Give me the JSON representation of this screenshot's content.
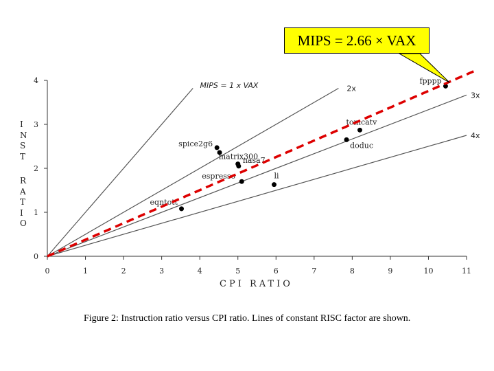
{
  "callout": {
    "text": "MIPS = 2.66 × VAX",
    "fill_color": "#ffff00"
  },
  "caption": "Figure 2: Instruction ratio versus CPI ratio. Lines of constant RISC factor are shown.",
  "chart_data": {
    "type": "scatter",
    "title": "",
    "xlabel": "CPI RATIO",
    "ylabel": "INST RATIO",
    "xlim": [
      0,
      11
    ],
    "ylim": [
      0,
      4
    ],
    "xticks": [
      "0",
      "1",
      "2",
      "3",
      "4",
      "5",
      "6",
      "7",
      "8",
      "9",
      "10",
      "11"
    ],
    "yticks": [
      "0",
      "1",
      "2",
      "3",
      "4"
    ],
    "grid": false,
    "points": [
      {
        "label": "fpppp",
        "x": 10.45,
        "y": 3.87
      },
      {
        "label": "tomcatv",
        "x": 8.2,
        "y": 2.87
      },
      {
        "label": "doduc",
        "x": 7.85,
        "y": 2.65
      },
      {
        "label": "spice2g6",
        "x": 4.45,
        "y": 2.47
      },
      {
        "label": "",
        "x": 4.52,
        "y": 2.36
      },
      {
        "label": "matrix300",
        "x": 5.0,
        "y": 2.1
      },
      {
        "label": "nasa7",
        "x": 5.02,
        "y": 2.05
      },
      {
        "label": "espresso",
        "x": 5.1,
        "y": 1.7
      },
      {
        "label": "li",
        "x": 5.95,
        "y": 1.63
      },
      {
        "label": "eqntott",
        "x": 3.52,
        "y": 1.08
      }
    ],
    "reference_lines": [
      {
        "label": "MIPS = 1 x VAX",
        "slope": 1.0
      },
      {
        "label": "2x",
        "slope": 0.5
      },
      {
        "label": "3x",
        "slope": 0.3333
      },
      {
        "label": "4x",
        "slope": 0.25
      }
    ],
    "highlight_line": {
      "slope": 0.376,
      "color": "#dd0000",
      "style": "dashed"
    }
  }
}
